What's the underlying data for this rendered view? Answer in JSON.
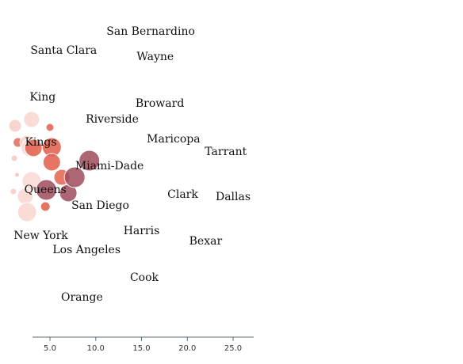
{
  "chart_data": {
    "type": "scatter",
    "x_ticks": [
      "5.0",
      "10.0",
      "15.0",
      "20.0",
      "25.0"
    ],
    "xlim": [
      2.0,
      28.5
    ],
    "colors": {
      "low": "#fbe4df",
      "high": "#e0533f",
      "dark": "#9e4b5c",
      "axis": "#5a6f80"
    },
    "labels": [
      {
        "name": "San Bernardino",
        "x": 16.0
      },
      {
        "name": "Santa Clara",
        "x": 6.5
      },
      {
        "name": "Wayne",
        "x": 16.5
      },
      {
        "name": "King",
        "x": 4.2
      },
      {
        "name": "Broward",
        "x": 17.0
      },
      {
        "name": "Riverside",
        "x": 11.8
      },
      {
        "name": "Maricopa",
        "x": 18.5
      },
      {
        "name": "Tarrant",
        "x": 24.2
      },
      {
        "name": "Kings",
        "x": 4.0
      },
      {
        "name": "Miami-Dade",
        "x": 11.5
      },
      {
        "name": "Queens",
        "x": 4.5
      },
      {
        "name": "Clark",
        "x": 19.5
      },
      {
        "name": "Dallas",
        "x": 25.0
      },
      {
        "name": "San Diego",
        "x": 10.5
      },
      {
        "name": "Harris",
        "x": 15.0
      },
      {
        "name": "New York",
        "x": 4.0
      },
      {
        "name": "Bexar",
        "x": 22.0
      },
      {
        "name": "Los Angeles",
        "x": 9.0
      },
      {
        "name": "Cook",
        "x": 15.3
      },
      {
        "name": "Orange",
        "x": 8.5
      }
    ],
    "bubbles": [
      {
        "x": 3.0,
        "r": 10,
        "level": 0.1
      },
      {
        "x": 1.2,
        "r": 8,
        "level": 0.15
      },
      {
        "x": 1.5,
        "r": 6,
        "level": 0.85
      },
      {
        "x": 1.1,
        "r": 4,
        "level": 0.2
      },
      {
        "x": 1.4,
        "r": 3,
        "level": 0.25
      },
      {
        "x": 1.0,
        "r": 4,
        "level": 0.18
      },
      {
        "x": 2.5,
        "r": 9,
        "level": 0.12
      },
      {
        "x": 2.8,
        "r": 11,
        "level": 0.08
      },
      {
        "x": 3.0,
        "r": 12,
        "level": 0.08
      },
      {
        "x": 2.3,
        "r": 10,
        "level": 0.1
      },
      {
        "x": 2.5,
        "r": 12,
        "level": 0.1
      },
      {
        "x": 3.2,
        "r": 11,
        "level": 0.92
      },
      {
        "x": 5.0,
        "r": 5,
        "level": 0.92
      },
      {
        "x": 5.2,
        "r": 12,
        "level": 0.93
      },
      {
        "x": 5.2,
        "r": 11,
        "level": 0.93
      },
      {
        "x": 6.3,
        "r": 10,
        "level": 0.9
      },
      {
        "x": 4.6,
        "r": 13,
        "level": 1.2
      },
      {
        "x": 4.5,
        "r": 6,
        "level": 0.95
      },
      {
        "x": 7.0,
        "r": 11,
        "level": 1.2
      },
      {
        "x": 7.7,
        "r": 13,
        "level": 1.2
      },
      {
        "x": 9.3,
        "r": 13,
        "level": 1.2
      }
    ]
  }
}
